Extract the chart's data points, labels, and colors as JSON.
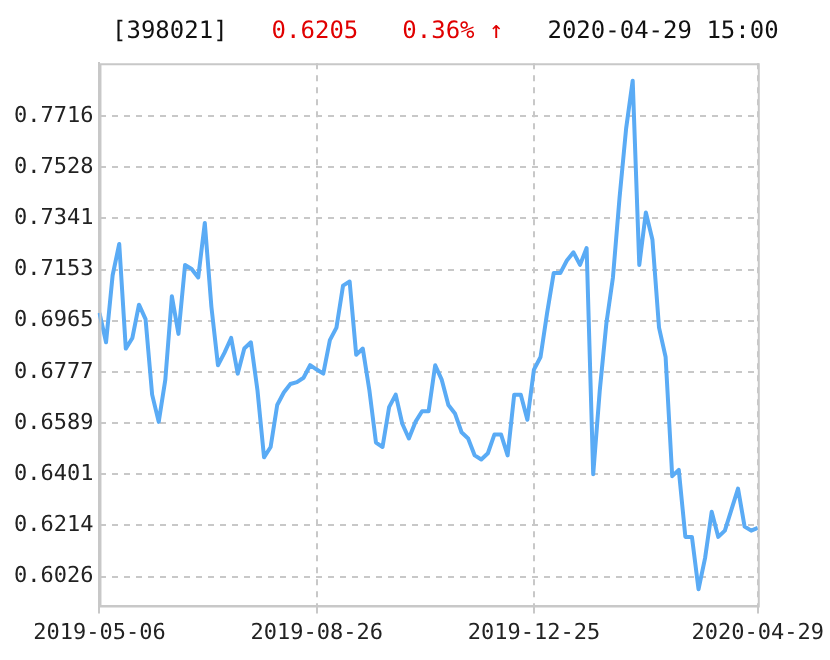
{
  "chart_data": {
    "type": "line",
    "title": "[398021]",
    "annotations": [
      "0.6205",
      "0.36% ↑",
      "2020-04-29 15:00"
    ],
    "categories": [
      "2019-05-06",
      null,
      null,
      null,
      null,
      null,
      null,
      null,
      null,
      null,
      null,
      null,
      null,
      null,
      null,
      null,
      null,
      null,
      null,
      null,
      null,
      null,
      null,
      null,
      null,
      null,
      null,
      null,
      null,
      null,
      null,
      null,
      null,
      "2019-08-26",
      null,
      null,
      null,
      null,
      null,
      null,
      null,
      null,
      null,
      null,
      null,
      null,
      null,
      null,
      null,
      null,
      null,
      null,
      null,
      null,
      null,
      null,
      null,
      null,
      null,
      null,
      null,
      null,
      null,
      null,
      null,
      null,
      "2019-12-25",
      null,
      null,
      null,
      null,
      null,
      null,
      null,
      null,
      null,
      null,
      null,
      null,
      null,
      null,
      null,
      null,
      null,
      null,
      null,
      null,
      null,
      null,
      null,
      null,
      null,
      null,
      null,
      null,
      null,
      null,
      null,
      null,
      null,
      "2020-04-29"
    ],
    "series": [
      {
        "color": "#5aabf5",
        "values": [
          0.6994,
          0.6886,
          0.7132,
          0.7247,
          0.6863,
          0.6902,
          0.7024,
          0.6971,
          0.6694,
          0.6594,
          0.6748,
          0.7055,
          0.6917,
          0.717,
          0.7155,
          0.7124,
          0.7324,
          0.7017,
          0.6802,
          0.6848,
          0.6902,
          0.6771,
          0.6863,
          0.6886,
          0.671,
          0.6464,
          0.6502,
          0.6656,
          0.6702,
          0.6733,
          0.674,
          0.6756,
          0.6802,
          0.6786,
          0.6771,
          0.6894,
          0.694,
          0.7094,
          0.7109,
          0.684,
          0.6863,
          0.671,
          0.6518,
          0.6502,
          0.6648,
          0.6694,
          0.6587,
          0.6533,
          0.6594,
          0.6633,
          0.6633,
          0.6802,
          0.6748,
          0.6656,
          0.6625,
          0.6556,
          0.6533,
          0.6471,
          0.6456,
          0.6479,
          0.6548,
          0.6548,
          0.6471,
          0.6694,
          0.6694,
          0.6602,
          0.6786,
          0.6832,
          0.6994,
          0.714,
          0.714,
          0.7186,
          0.7216,
          0.717,
          0.7232,
          0.6402,
          0.671,
          0.6955,
          0.7124,
          0.7416,
          0.767,
          0.7846,
          0.717,
          0.7362,
          0.7262,
          0.694,
          0.6832,
          0.6395,
          0.6418,
          0.6172,
          0.6172,
          0.598,
          0.6095,
          0.6264,
          0.6172,
          0.6195,
          0.6272,
          0.6349,
          0.621,
          0.6195,
          0.6205
        ]
      }
    ],
    "ylim": [
      0.592,
      0.791
    ],
    "yticks": [
      0.6026,
      0.6214,
      0.6401,
      0.6589,
      0.6777,
      0.6965,
      0.7153,
      0.7341,
      0.7528,
      0.7716
    ],
    "grid": true,
    "legend": false,
    "marker": "none",
    "line_style": "solid"
  }
}
